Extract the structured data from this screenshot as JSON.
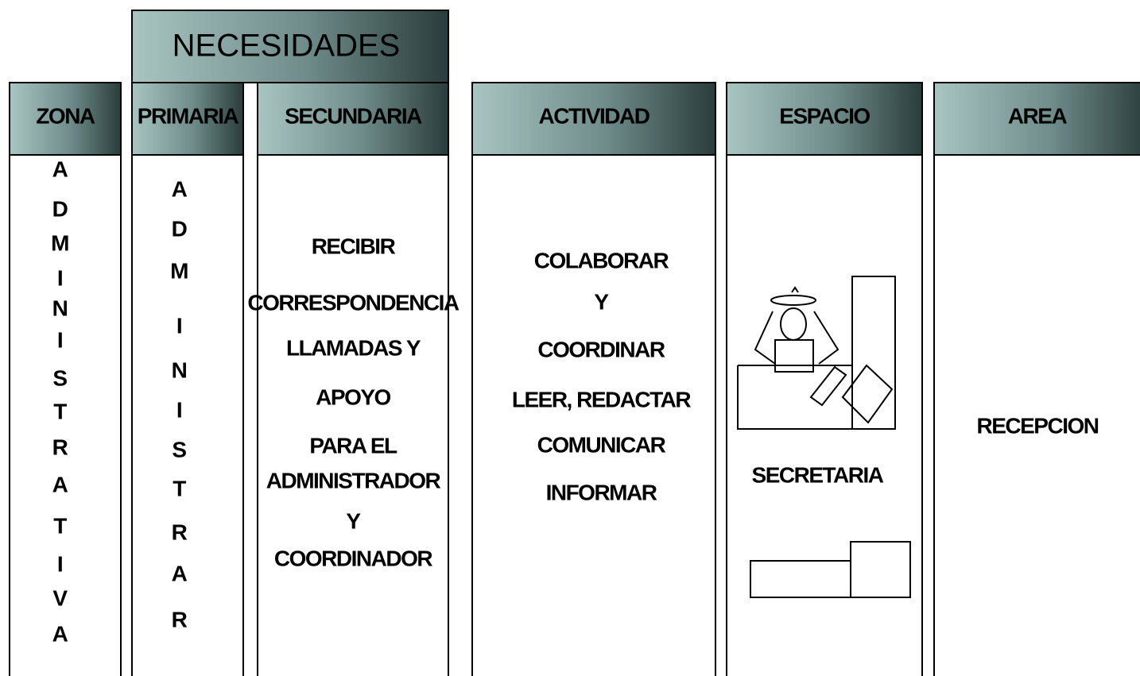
{
  "header": {
    "title": "NECESIDADES"
  },
  "columns": [
    {
      "header": "ZONA",
      "letters": [
        "A",
        "D",
        "M",
        "I",
        "N",
        "I",
        "S",
        "T",
        "R",
        "A",
        "T",
        "I",
        "V",
        "A"
      ]
    },
    {
      "header": "PRIMARIA",
      "letters": [
        "A",
        "D",
        "M",
        "I",
        "N",
        "I",
        "S",
        "T",
        "R",
        "A",
        "R"
      ]
    },
    {
      "header": "SECUNDARIA",
      "lines": [
        "RECIBIR",
        "CORRESPONDENCIA",
        "LLAMADAS Y",
        "APOYO",
        "PARA EL",
        "ADMINISTRADOR",
        "Y",
        "COORDINADOR"
      ]
    },
    {
      "header": "ACTIVIDAD",
      "lines": [
        "COLABORAR",
        "Y",
        "COORDINAR",
        "LEER, REDACTAR",
        "COMUNICAR",
        "INFORMAR"
      ]
    },
    {
      "header": "ESPACIO",
      "lines": [
        "SECRETARIA"
      ]
    },
    {
      "header": "AREA",
      "lines": [
        "RECEPCION"
      ]
    }
  ]
}
